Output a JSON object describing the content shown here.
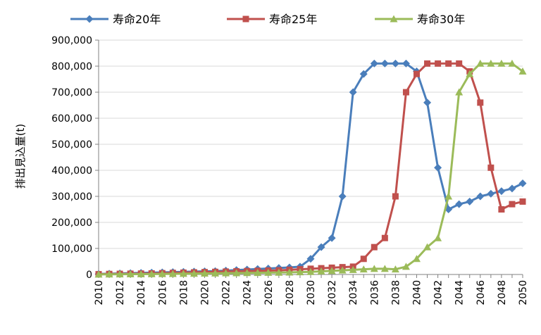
{
  "chart_data": {
    "type": "line",
    "title": "",
    "xlabel": "",
    "ylabel": "排出見込量(t)",
    "ylim": [
      0,
      900000
    ],
    "yticks": [
      0,
      100000,
      200000,
      300000,
      400000,
      500000,
      600000,
      700000,
      800000,
      900000
    ],
    "ytick_labels": [
      "0",
      "100,000",
      "200,000",
      "300,000",
      "400,000",
      "500,000",
      "600,000",
      "700,000",
      "800,000",
      "900,000"
    ],
    "x": [
      2010,
      2011,
      2012,
      2013,
      2014,
      2015,
      2016,
      2017,
      2018,
      2019,
      2020,
      2021,
      2022,
      2023,
      2024,
      2025,
      2026,
      2027,
      2028,
      2029,
      2030,
      2031,
      2032,
      2033,
      2034,
      2035,
      2036,
      2037,
      2038,
      2039,
      2040,
      2041,
      2042,
      2043,
      2044,
      2045,
      2046,
      2047,
      2048,
      2049,
      2050
    ],
    "xtick_labels": [
      "2010",
      "2012",
      "2014",
      "2016",
      "2018",
      "2020",
      "2022",
      "2024",
      "2026",
      "2028",
      "2030",
      "2032",
      "2034",
      "2036",
      "2038",
      "2040",
      "2042",
      "2044",
      "2046",
      "2048",
      "2050"
    ],
    "grid": "horizontal",
    "legend": "top",
    "series": [
      {
        "name": "寿命20年",
        "color": "#4a7ebb",
        "marker": "diamond",
        "values": [
          2000,
          3000,
          4000,
          5000,
          6000,
          7000,
          8000,
          9000,
          10000,
          11000,
          12000,
          13000,
          15000,
          17000,
          19000,
          21000,
          23000,
          25000,
          27000,
          30000,
          60000,
          105000,
          140000,
          300000,
          700000,
          770000,
          810000,
          810000,
          810000,
          810000,
          780000,
          660000,
          410000,
          250000,
          270000,
          280000,
          300000,
          310000,
          320000,
          330000,
          350000
        ]
      },
      {
        "name": "寿命25年",
        "color": "#c0504d",
        "marker": "square",
        "values": [
          1000,
          2000,
          2500,
          3000,
          3500,
          4000,
          5000,
          6000,
          7000,
          8000,
          9000,
          10000,
          11000,
          12000,
          13000,
          14000,
          15000,
          16000,
          18000,
          20000,
          22000,
          24000,
          26000,
          28000,
          30000,
          60000,
          105000,
          140000,
          300000,
          700000,
          770000,
          810000,
          810000,
          810000,
          810000,
          780000,
          660000,
          410000,
          250000,
          270000,
          280000
        ]
      },
      {
        "name": "寿命30年",
        "color": "#9bbb59",
        "marker": "triangle",
        "values": [
          500,
          800,
          1000,
          1200,
          1500,
          1800,
          2000,
          2500,
          3000,
          3500,
          4000,
          4500,
          5000,
          5500,
          6000,
          6500,
          7000,
          7500,
          8000,
          9000,
          10000,
          12000,
          14000,
          16000,
          18000,
          20000,
          22000,
          22000,
          20000,
          30000,
          60000,
          105000,
          140000,
          300000,
          700000,
          770000,
          810000,
          810000,
          810000,
          810000,
          780000
        ]
      }
    ]
  }
}
